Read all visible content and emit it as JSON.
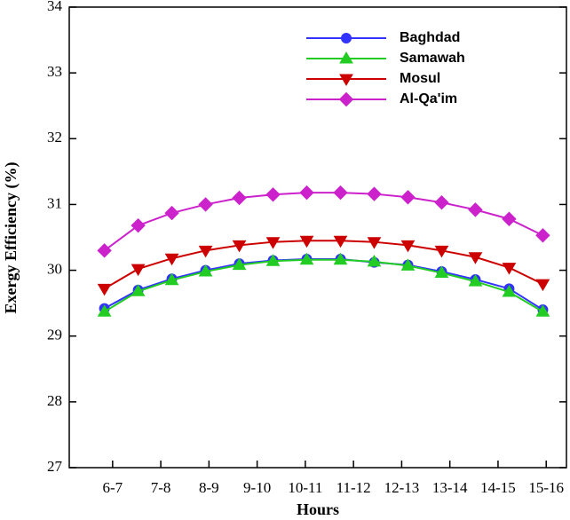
{
  "chart_data": {
    "type": "line",
    "xlabel": "Hours",
    "ylabel": "Exergy Efficiency (%)",
    "x": [
      6.33,
      7.03,
      7.73,
      8.43,
      9.13,
      9.83,
      10.53,
      11.23,
      11.93,
      12.63,
      13.33,
      14.03,
      14.73,
      15.43
    ],
    "xlim": [
      5.6,
      15.92
    ],
    "xticks": [
      {
        "value": 6.5,
        "label": "6-7"
      },
      {
        "value": 7.5,
        "label": "7-8"
      },
      {
        "value": 8.5,
        "label": "8-9"
      },
      {
        "value": 9.5,
        "label": "9-10"
      },
      {
        "value": 10.5,
        "label": "10-11"
      },
      {
        "value": 11.5,
        "label": "11-12"
      },
      {
        "value": 12.5,
        "label": "12-13"
      },
      {
        "value": 13.5,
        "label": "13-14"
      },
      {
        "value": 14.5,
        "label": "14-15"
      },
      {
        "value": 15.5,
        "label": "15-16"
      }
    ],
    "ylim": [
      27,
      34
    ],
    "yticks": [
      27,
      28,
      29,
      30,
      31,
      32,
      33,
      34
    ],
    "legend": "upper-right",
    "series": [
      {
        "name": "Baghdad",
        "color": "#3333ff",
        "marker": "circle",
        "values": [
          29.42,
          29.7,
          29.87,
          30.0,
          30.1,
          30.15,
          30.17,
          30.17,
          30.12,
          30.08,
          29.98,
          29.86,
          29.72,
          29.4
        ]
      },
      {
        "name": "Samawah",
        "color": "#22cc22",
        "marker": "triangle-up",
        "values": [
          29.37,
          29.68,
          29.85,
          29.98,
          30.08,
          30.14,
          30.16,
          30.16,
          30.13,
          30.07,
          29.96,
          29.83,
          29.67,
          29.37
        ]
      },
      {
        "name": "Mosul",
        "color": "#cc0000",
        "marker": "triangle-down",
        "values": [
          29.72,
          30.02,
          30.18,
          30.3,
          30.38,
          30.43,
          30.45,
          30.45,
          30.43,
          30.38,
          30.3,
          30.2,
          30.04,
          29.79
        ]
      },
      {
        "name": "Al-Qa'im",
        "color": "#cc22cc",
        "marker": "diamond",
        "values": [
          30.3,
          30.68,
          30.87,
          31.0,
          31.1,
          31.15,
          31.18,
          31.18,
          31.16,
          31.11,
          31.03,
          30.92,
          30.78,
          30.53
        ]
      }
    ]
  }
}
